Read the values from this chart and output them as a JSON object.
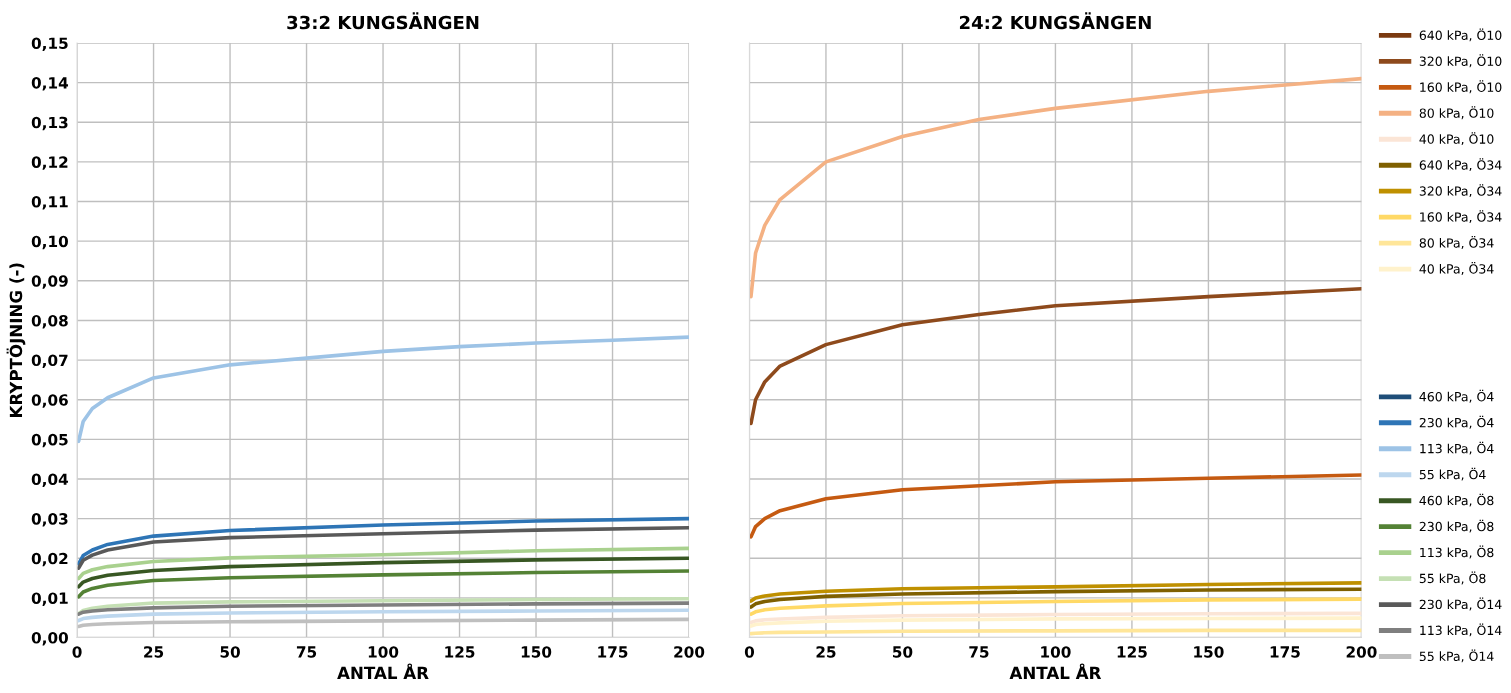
{
  "chart_data": [
    {
      "type": "line",
      "title": "33:2 KUNGSÄNGEN",
      "xlabel": "ANTAL ÅR",
      "ylabel": "KRYPTÖJNING (-)",
      "x": [
        0.5,
        2,
        5,
        10,
        25,
        50,
        100,
        150,
        200
      ],
      "xlim": [
        0,
        200
      ],
      "xticks": [
        0,
        25,
        50,
        75,
        100,
        125,
        150,
        175,
        200
      ],
      "ylim": [
        0,
        0.15
      ],
      "yticks": [
        {
          "value": 0,
          "label": "0,00"
        },
        {
          "value": 0.01,
          "label": "0,01"
        },
        {
          "value": 0.02,
          "label": "0,02"
        },
        {
          "value": 0.03,
          "label": "0,03"
        },
        {
          "value": 0.04,
          "label": "0,04"
        },
        {
          "value": 0.05,
          "label": "0,05"
        },
        {
          "value": 0.06,
          "label": "0,06"
        },
        {
          "value": 0.07,
          "label": "0,07"
        },
        {
          "value": 0.08,
          "label": "0,08"
        },
        {
          "value": 0.09,
          "label": "0,09"
        },
        {
          "value": 0.1,
          "label": "0,10"
        },
        {
          "value": 0.11,
          "label": "0,11"
        },
        {
          "value": 0.12,
          "label": "0,12"
        },
        {
          "value": 0.13,
          "label": "0,13"
        },
        {
          "value": 0.14,
          "label": "0,14"
        },
        {
          "value": 0.15,
          "label": "0,15"
        }
      ],
      "grid": true,
      "legend": "bottom right",
      "marker": "none",
      "line_style": "solid",
      "series": [
        {
          "name": "460 kPa, Ö4",
          "color": "#1f4e79",
          "values": [
            null,
            null,
            null,
            null,
            null,
            null,
            null,
            null,
            null
          ]
        },
        {
          "name": "230 kPa, Ö4",
          "color": "#2e75b6",
          "values": [
            0.0186,
            0.0207,
            0.0221,
            0.0235,
            0.0256,
            0.027,
            0.0284,
            0.0294,
            0.03
          ]
        },
        {
          "name": "113 kPa, Ö4",
          "color": "#9dc3e6",
          "x": [
            0.5,
            2,
            5,
            10,
            25,
            50,
            75,
            100,
            125,
            150,
            175,
            200
          ],
          "values": [
            0.0495,
            0.0545,
            0.0578,
            0.0605,
            0.0655,
            0.0688,
            0.0705,
            0.0722,
            0.0734,
            0.0743,
            0.075,
            0.0758
          ]
        },
        {
          "name": "55 kPa, Ö4",
          "color": "#bdd7ee",
          "values": [
            0.0043,
            0.0048,
            0.0051,
            0.0054,
            0.0059,
            0.0062,
            0.0065,
            0.0067,
            0.0069
          ]
        },
        {
          "name": "460 kPa, Ö8",
          "color": "#385723",
          "values": [
            0.0128,
            0.014,
            0.0149,
            0.0157,
            0.0169,
            0.0179,
            0.0189,
            0.0196,
            0.02
          ]
        },
        {
          "name": "230 kPa, Ö8",
          "color": "#548235",
          "values": [
            0.0103,
            0.0115,
            0.0124,
            0.0132,
            0.0144,
            0.0151,
            0.0158,
            0.0164,
            0.0168
          ]
        },
        {
          "name": "113 kPa, Ö8",
          "color": "#a9d18e",
          "values": [
            0.0149,
            0.0162,
            0.0171,
            0.0179,
            0.0192,
            0.0201,
            0.0209,
            0.0219,
            0.0225
          ]
        },
        {
          "name": "55 kPa, Ö8",
          "color": "#c5e0b4",
          "values": [
            0.006,
            0.0068,
            0.0074,
            0.0079,
            0.0087,
            0.009,
            0.0093,
            0.0096,
            0.0098
          ]
        },
        {
          "name": "230 kPa, Ö14",
          "color": "#595959",
          "values": [
            0.0175,
            0.0195,
            0.0208,
            0.0221,
            0.0241,
            0.0252,
            0.0262,
            0.0271,
            0.0277
          ]
        },
        {
          "name": "113 kPa, Ö14",
          "color": "#7f7f7f",
          "values": [
            0.0059,
            0.0064,
            0.0067,
            0.007,
            0.0075,
            0.0079,
            0.0082,
            0.0085,
            0.0087
          ]
        },
        {
          "name": "55 kPa, Ö14",
          "color": "#bfbfbf",
          "values": [
            0.0028,
            0.0031,
            0.0033,
            0.0035,
            0.0038,
            0.004,
            0.0042,
            0.0044,
            0.0046
          ]
        }
      ]
    },
    {
      "type": "line",
      "title": "24:2 KUNGSÄNGEN",
      "xlabel": "ANTAL ÅR",
      "x": [
        0.5,
        2,
        5,
        10,
        25,
        50,
        100,
        150,
        200
      ],
      "xlim": [
        0,
        200
      ],
      "xticks": [
        0,
        25,
        50,
        75,
        100,
        125,
        150,
        175,
        200
      ],
      "ylim": [
        0,
        0.15
      ],
      "yticks": [
        0,
        0.01,
        0.02,
        0.03,
        0.04,
        0.05,
        0.06,
        0.07,
        0.08,
        0.09,
        0.1,
        0.11,
        0.12,
        0.13,
        0.14,
        0.15
      ],
      "tick_labels": "x",
      "grid": true,
      "legend": "top right",
      "marker": "none",
      "line_style": "solid",
      "series": [
        {
          "name": "640 kPa, Ö10",
          "color": "#7b3a10",
          "values": [
            null,
            null,
            null,
            null,
            null,
            null,
            null,
            null,
            null
          ]
        },
        {
          "name": "320 kPa, Ö10",
          "color": "#8e4a1c",
          "x": [
            0.5,
            2,
            5,
            10,
            25,
            50,
            75,
            100,
            150,
            200
          ],
          "values": [
            0.054,
            0.06,
            0.0645,
            0.0685,
            0.0739,
            0.0789,
            0.0815,
            0.0837,
            0.086,
            0.088
          ]
        },
        {
          "name": "160 kPa, Ö10",
          "color": "#c55a11",
          "values": [
            0.0254,
            0.028,
            0.03,
            0.032,
            0.035,
            0.0373,
            0.0393,
            0.0402,
            0.041
          ]
        },
        {
          "name": "80 kPa, Ö10",
          "color": "#f4b183",
          "x": [
            0.5,
            2,
            5,
            10,
            25,
            50,
            75,
            100,
            150,
            200
          ],
          "values": [
            0.086,
            0.097,
            0.104,
            0.1105,
            0.12,
            0.1264,
            0.1307,
            0.1335,
            0.1378,
            0.141
          ]
        },
        {
          "name": "40 kPa, Ö10",
          "color": "#fbe5d6",
          "values": [
            0.0038,
            0.0042,
            0.0045,
            0.0047,
            0.0051,
            0.0055,
            0.0058,
            0.006,
            0.0061
          ]
        },
        {
          "name": "640 kPa, Ö34",
          "color": "#7f6000",
          "values": [
            0.0077,
            0.0085,
            0.0091,
            0.0096,
            0.0104,
            0.011,
            0.0116,
            0.012,
            0.0122
          ]
        },
        {
          "name": "320 kPa, Ö34",
          "color": "#bf9000",
          "values": [
            0.0092,
            0.01,
            0.0105,
            0.011,
            0.0117,
            0.0123,
            0.0128,
            0.0134,
            0.0138
          ]
        },
        {
          "name": "160 kPa, Ö34",
          "color": "#ffd966",
          "values": [
            0.0059,
            0.0065,
            0.007,
            0.0074,
            0.008,
            0.0086,
            0.0091,
            0.0095,
            0.0097
          ]
        },
        {
          "name": "80 kPa, Ö34",
          "color": "#ffe699",
          "values": [
            0.001,
            0.0011,
            0.0012,
            0.0013,
            0.0014,
            0.0016,
            0.0017,
            0.0018,
            0.0018
          ]
        },
        {
          "name": "40 kPa, Ö34",
          "color": "#fff2cc",
          "values": [
            0.0029,
            0.0033,
            0.0035,
            0.0037,
            0.0041,
            0.0044,
            0.0047,
            0.0048,
            0.0049
          ]
        }
      ]
    }
  ]
}
